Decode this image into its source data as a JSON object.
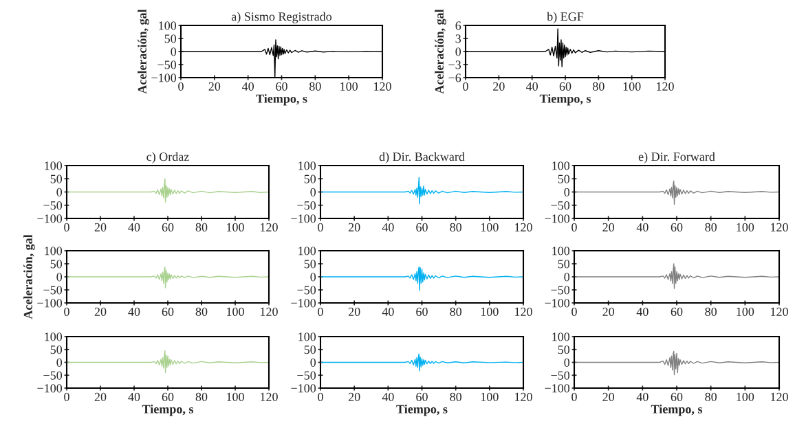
{
  "chart_data": [
    {
      "type": "line",
      "title": "a) Sismo Registrado",
      "xlabel": "Tiempo, s",
      "ylabel": "Aceleración, gal",
      "xlim": [
        0,
        120
      ],
      "ylim": [
        -100,
        100
      ],
      "xticks": [
        0,
        20,
        40,
        60,
        80,
        100,
        120
      ],
      "yticks": [
        -100,
        -50,
        0,
        50,
        100
      ],
      "series": [
        {
          "color": "#000000",
          "x": [
            0,
            10,
            20,
            30,
            40,
            48,
            50,
            51,
            52,
            53,
            54,
            55,
            55.5,
            56,
            56.5,
            57,
            57.5,
            58,
            58.5,
            59,
            59.5,
            60,
            60.5,
            61,
            61.5,
            62,
            63,
            64,
            65,
            66,
            68,
            70,
            72,
            75,
            80,
            85,
            90,
            100,
            110,
            120
          ],
          "values": [
            0,
            0,
            0,
            0,
            0,
            0,
            8,
            -10,
            12,
            -12,
            15,
            -15,
            25,
            -100,
            45,
            -20,
            22,
            -28,
            20,
            -15,
            18,
            -12,
            12,
            -10,
            8,
            -8,
            6,
            -5,
            5,
            -4,
            4,
            -3,
            3,
            -2,
            2,
            -2,
            1,
            -1,
            1,
            0
          ]
        }
      ]
    },
    {
      "type": "line",
      "title": "b) EGF",
      "xlabel": "Tiempo, s",
      "ylabel": "Aceleración, gal",
      "xlim": [
        0,
        120
      ],
      "ylim": [
        -6,
        6
      ],
      "xticks": [
        0,
        20,
        40,
        60,
        80,
        100,
        120
      ],
      "yticks": [
        -6,
        -3,
        0,
        3,
        6
      ],
      "series": [
        {
          "color": "#000000",
          "x": [
            0,
            10,
            20,
            30,
            40,
            48,
            50,
            51,
            52,
            53,
            54,
            55,
            55.5,
            56,
            56.5,
            57,
            57.5,
            58,
            58.5,
            59,
            59.5,
            60,
            60.5,
            61,
            61.5,
            62,
            63,
            64,
            65,
            66,
            68,
            70,
            72,
            75,
            80,
            85,
            90,
            100,
            110,
            120
          ],
          "values": [
            0,
            0,
            0,
            0,
            0,
            0,
            0.5,
            -0.8,
            1,
            -1,
            1.2,
            -1.5,
            5.2,
            -3.3,
            2,
            -2,
            2.7,
            -3.5,
            2,
            -1.5,
            1.5,
            -1.2,
            1,
            -0.8,
            0.8,
            -0.6,
            0.5,
            -0.4,
            0.4,
            -0.3,
            0.3,
            -0.2,
            0.2,
            -0.2,
            0.2,
            -0.1,
            0.1,
            -0.1,
            0.1,
            0
          ]
        }
      ]
    },
    {
      "type": "line",
      "title": "c) Ordaz",
      "xlim": [
        0,
        120
      ],
      "ylim": [
        -100,
        100
      ],
      "xticks": [
        0,
        20,
        40,
        60,
        80,
        100,
        120
      ],
      "yticks": [
        -100,
        -50,
        0,
        50,
        100
      ],
      "series": [
        {
          "color": "#a9d18e",
          "x": [
            0,
            10,
            20,
            30,
            40,
            50,
            52,
            53,
            54,
            55,
            56,
            56.5,
            57,
            57.5,
            58,
            58.3,
            58.6,
            59,
            59.5,
            60,
            60.5,
            61,
            61.5,
            62,
            63,
            64,
            65,
            66,
            67,
            68,
            70,
            72,
            75,
            80,
            85,
            90,
            100,
            110,
            115,
            120
          ],
          "values": [
            0,
            0,
            0,
            0,
            0,
            0,
            3,
            -5,
            8,
            -10,
            12,
            -15,
            18,
            -22,
            30,
            50,
            -38,
            25,
            -20,
            18,
            -15,
            12,
            -10,
            10,
            -8,
            7,
            -6,
            5,
            -5,
            4,
            -4,
            4,
            -3,
            3,
            -3,
            2,
            -2,
            2,
            -2,
            0
          ]
        }
      ]
    },
    {
      "type": "line",
      "title": "d) Dir. Backward",
      "xlim": [
        0,
        120
      ],
      "ylim": [
        -100,
        100
      ],
      "xticks": [
        0,
        20,
        40,
        60,
        80,
        100,
        120
      ],
      "yticks": [
        -100,
        -50,
        0,
        50,
        100
      ],
      "series": [
        {
          "color": "#00b0f0",
          "x": [
            0,
            10,
            20,
            30,
            40,
            50,
            52,
            53,
            54,
            55,
            56,
            56.5,
            57,
            57.5,
            58,
            58.3,
            58.6,
            59,
            59.5,
            60,
            60.5,
            61,
            61.5,
            62,
            63,
            64,
            65,
            66,
            67,
            68,
            70,
            72,
            75,
            80,
            85,
            90,
            100,
            110,
            115,
            120
          ],
          "values": [
            0,
            0,
            0,
            0,
            0,
            0,
            3,
            -4,
            6,
            -8,
            10,
            -12,
            15,
            -20,
            25,
            55,
            -45,
            20,
            -18,
            15,
            -12,
            22,
            -12,
            10,
            -8,
            7,
            -6,
            5,
            -5,
            4,
            -4,
            3,
            -3,
            3,
            -2,
            2,
            -2,
            2,
            -1,
            0
          ]
        }
      ]
    },
    {
      "type": "line",
      "title": "e) Dir. Forward",
      "xlim": [
        0,
        120
      ],
      "ylim": [
        -100,
        100
      ],
      "xticks": [
        0,
        20,
        40,
        60,
        80,
        100,
        120
      ],
      "yticks": [
        -100,
        -50,
        0,
        50,
        100
      ],
      "series": [
        {
          "color": "#808080",
          "x": [
            0,
            10,
            20,
            30,
            40,
            50,
            52,
            53,
            54,
            55,
            56,
            56.5,
            57,
            57.5,
            58,
            58.3,
            58.6,
            59,
            59.5,
            60,
            60.5,
            61,
            61.5,
            62,
            63,
            64,
            65,
            66,
            67,
            68,
            70,
            72,
            75,
            80,
            85,
            90,
            100,
            110,
            115,
            120
          ],
          "values": [
            0,
            0,
            0,
            0,
            0,
            0,
            3,
            -5,
            8,
            -10,
            12,
            -15,
            18,
            -22,
            30,
            42,
            -47,
            25,
            -20,
            18,
            -15,
            12,
            -10,
            10,
            -8,
            7,
            -6,
            5,
            -5,
            4,
            -4,
            3,
            -3,
            3,
            -2,
            2,
            -2,
            2,
            -1,
            0
          ]
        }
      ]
    },
    {
      "type": "line",
      "ylabel": "Aceleración, gal",
      "xlim": [
        0,
        120
      ],
      "ylim": [
        -100,
        100
      ],
      "xticks": [
        0,
        20,
        40,
        60,
        80,
        100,
        120
      ],
      "yticks": [
        -100,
        -50,
        0,
        50,
        100
      ],
      "series": [
        {
          "color": "#a9d18e",
          "x": [
            0,
            10,
            20,
            30,
            40,
            50,
            52,
            53,
            54,
            55,
            56,
            56.5,
            57,
            57.5,
            58,
            58.3,
            58.6,
            59,
            59.5,
            60,
            60.5,
            61,
            61.5,
            62,
            63,
            64,
            65,
            66,
            67,
            68,
            70,
            72,
            75,
            80,
            85,
            90,
            100,
            110,
            115,
            120
          ],
          "values": [
            0,
            0,
            0,
            0,
            0,
            0,
            3,
            -5,
            8,
            -10,
            12,
            -15,
            18,
            -25,
            30,
            37,
            -42,
            25,
            -20,
            15,
            -12,
            10,
            -8,
            8,
            -6,
            5,
            -5,
            4,
            -4,
            3,
            -3,
            3,
            -3,
            2,
            -2,
            2,
            -2,
            2,
            -1,
            0
          ]
        }
      ]
    },
    {
      "type": "line",
      "xlim": [
        0,
        120
      ],
      "ylim": [
        -100,
        100
      ],
      "xticks": [
        0,
        20,
        40,
        60,
        80,
        100,
        120
      ],
      "yticks": [
        -100,
        -50,
        0,
        50,
        100
      ],
      "series": [
        {
          "color": "#00b0f0",
          "x": [
            0,
            10,
            20,
            30,
            40,
            50,
            52,
            53,
            54,
            55,
            56,
            56.5,
            57,
            57.5,
            58,
            58.3,
            58.6,
            59,
            59.5,
            60,
            60.5,
            61,
            61.5,
            62,
            63,
            64,
            65,
            66,
            67,
            68,
            70,
            72,
            75,
            80,
            85,
            90,
            100,
            110,
            115,
            120
          ],
          "values": [
            0,
            0,
            0,
            0,
            0,
            0,
            3,
            -5,
            8,
            -10,
            12,
            -15,
            20,
            -25,
            30,
            38,
            -52,
            35,
            -25,
            30,
            -20,
            15,
            -12,
            10,
            -8,
            7,
            -6,
            5,
            -5,
            4,
            -4,
            3,
            -3,
            3,
            -2,
            2,
            -2,
            2,
            -1,
            0
          ]
        }
      ]
    },
    {
      "type": "line",
      "xlim": [
        0,
        120
      ],
      "ylim": [
        -100,
        100
      ],
      "xticks": [
        0,
        20,
        40,
        60,
        80,
        100,
        120
      ],
      "yticks": [
        -100,
        -50,
        0,
        50,
        100
      ],
      "series": [
        {
          "color": "#808080",
          "x": [
            0,
            10,
            20,
            30,
            40,
            50,
            52,
            53,
            54,
            55,
            56,
            56.5,
            57,
            57.5,
            58,
            58.3,
            58.6,
            59,
            59.5,
            60,
            60.5,
            61,
            61.5,
            62,
            63,
            64,
            65,
            66,
            67,
            68,
            70,
            72,
            75,
            80,
            85,
            90,
            100,
            110,
            115,
            120
          ],
          "values": [
            0,
            0,
            0,
            0,
            0,
            0,
            3,
            -5,
            8,
            -10,
            12,
            -15,
            20,
            -25,
            30,
            50,
            -45,
            38,
            -25,
            20,
            -15,
            12,
            -10,
            10,
            -8,
            7,
            -6,
            5,
            -5,
            4,
            -4,
            3,
            -3,
            3,
            -2,
            2,
            -2,
            2,
            -1,
            0
          ]
        }
      ]
    },
    {
      "type": "line",
      "xlabel": "Tiempo, s",
      "xlim": [
        0,
        120
      ],
      "ylim": [
        -100,
        100
      ],
      "xticks": [
        0,
        20,
        40,
        60,
        80,
        100,
        120
      ],
      "yticks": [
        -100,
        -50,
        0,
        50,
        100
      ],
      "series": [
        {
          "color": "#a9d18e",
          "x": [
            0,
            10,
            20,
            30,
            40,
            50,
            52,
            53,
            54,
            55,
            56,
            56.5,
            57,
            57.5,
            58,
            58.3,
            58.6,
            59,
            59.5,
            60,
            60.5,
            61,
            61.5,
            62,
            63,
            64,
            65,
            66,
            67,
            68,
            70,
            72,
            75,
            80,
            85,
            90,
            100,
            110,
            115,
            120
          ],
          "values": [
            0,
            0,
            0,
            0,
            0,
            0,
            3,
            -5,
            8,
            -10,
            12,
            -15,
            18,
            -22,
            30,
            45,
            -40,
            28,
            -20,
            25,
            -15,
            12,
            -10,
            10,
            -8,
            7,
            -6,
            5,
            -5,
            4,
            -4,
            3,
            -3,
            3,
            -2,
            2,
            -2,
            2,
            -1,
            0
          ]
        }
      ]
    },
    {
      "type": "line",
      "xlabel": "Tiempo, s",
      "xlim": [
        0,
        120
      ],
      "ylim": [
        -100,
        100
      ],
      "xticks": [
        0,
        20,
        40,
        60,
        80,
        100,
        120
      ],
      "yticks": [
        -100,
        -50,
        0,
        50,
        100
      ],
      "series": [
        {
          "color": "#00b0f0",
          "x": [
            0,
            10,
            20,
            30,
            40,
            50,
            52,
            53,
            54,
            55,
            56,
            56.5,
            57,
            57.5,
            58,
            58.3,
            58.6,
            59,
            59.5,
            60,
            60.5,
            61,
            61.5,
            62,
            63,
            64,
            65,
            66,
            67,
            68,
            70,
            72,
            75,
            80,
            85,
            90,
            100,
            110,
            115,
            120
          ],
          "values": [
            0,
            0,
            0,
            0,
            0,
            0,
            3,
            -5,
            8,
            -10,
            12,
            -15,
            18,
            -20,
            25,
            33,
            -33,
            20,
            -18,
            15,
            -12,
            10,
            -8,
            8,
            -6,
            5,
            -5,
            4,
            -4,
            3,
            -3,
            3,
            -2,
            2,
            -2,
            2,
            -1,
            1,
            -1,
            0
          ]
        }
      ]
    },
    {
      "type": "line",
      "xlabel": "Tiempo, s",
      "xlim": [
        0,
        120
      ],
      "ylim": [
        -100,
        100
      ],
      "xticks": [
        0,
        20,
        40,
        60,
        80,
        100,
        120
      ],
      "yticks": [
        -100,
        -50,
        0,
        50,
        100
      ],
      "series": [
        {
          "color": "#808080",
          "x": [
            0,
            10,
            20,
            30,
            40,
            50,
            52,
            53,
            54,
            55,
            56,
            56.5,
            57,
            57.5,
            58,
            58.3,
            58.6,
            59,
            59.5,
            60,
            60.5,
            61,
            61.5,
            62,
            63,
            64,
            65,
            66,
            67,
            68,
            70,
            72,
            75,
            80,
            85,
            90,
            100,
            110,
            115,
            120
          ],
          "values": [
            0,
            0,
            0,
            0,
            0,
            0,
            5,
            -8,
            10,
            -12,
            18,
            -20,
            25,
            -30,
            35,
            43,
            -48,
            30,
            -25,
            35,
            -40,
            15,
            -12,
            10,
            -8,
            7,
            -6,
            5,
            -5,
            4,
            -4,
            3,
            -3,
            3,
            -2,
            2,
            -2,
            2,
            -1,
            0
          ]
        }
      ]
    }
  ]
}
